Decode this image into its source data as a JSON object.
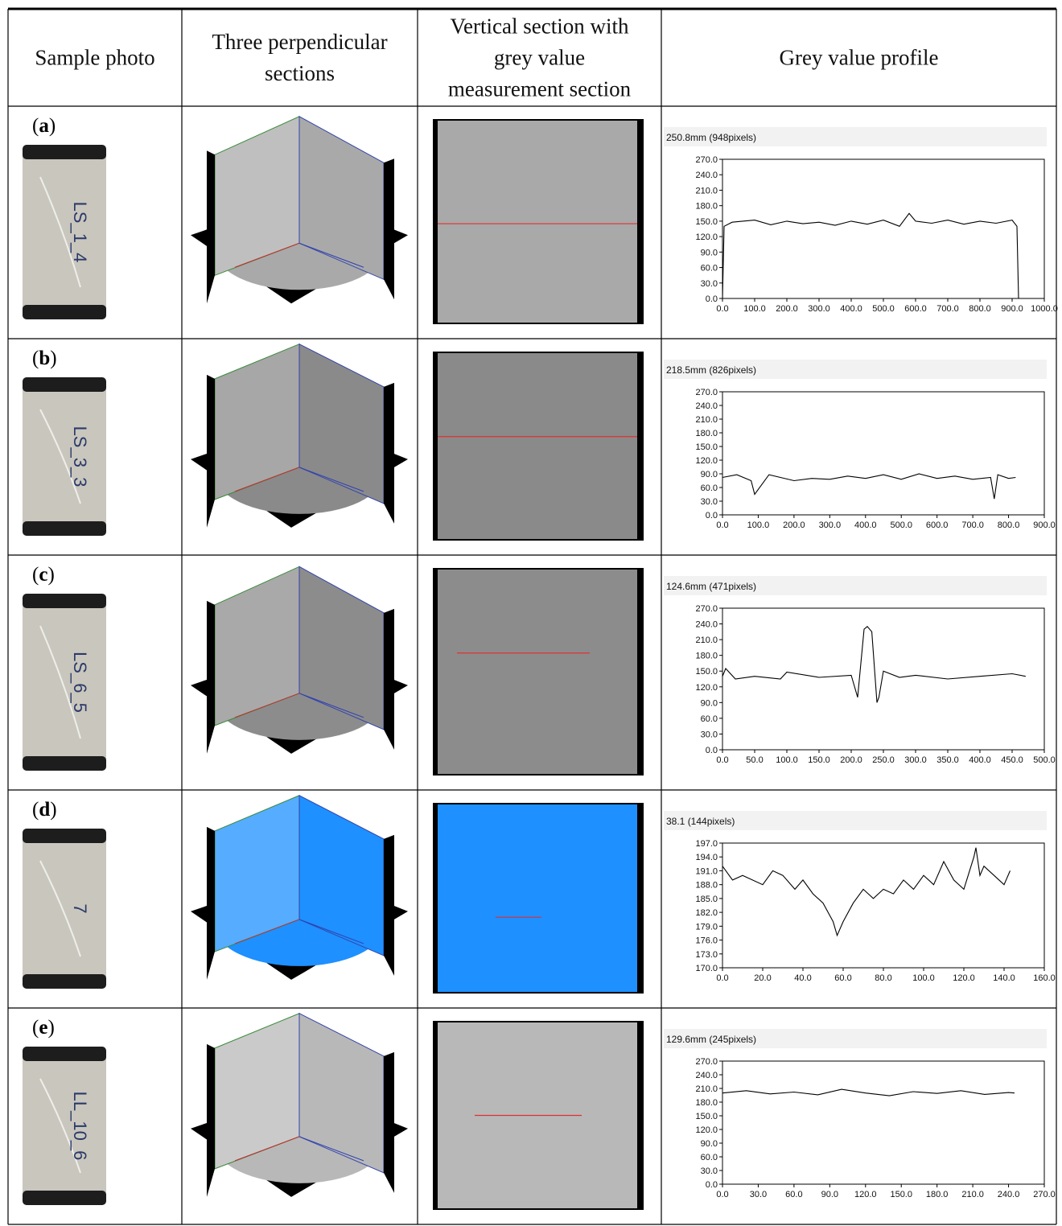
{
  "table": {
    "headers": [
      "Sample photo",
      [
        "Three perpendicular",
        "sections"
      ],
      [
        "Vertical section with",
        "grey value",
        "measurement section"
      ],
      "Grey value profile"
    ],
    "rows": [
      {
        "label": "a",
        "sample_text": "LS_1_4",
        "section_color": "#a9a9a9",
        "profile": {
          "header": "250.8mm (948pixels)",
          "chart_data": {
            "type": "line",
            "x_range": [
              0,
              1000
            ],
            "x_step": 100,
            "x_decimals": 1,
            "y_range": [
              0,
              270
            ],
            "y_step": 30,
            "y_decimals": 1,
            "series": [
              {
                "x": [
                  0,
                  5,
                  30,
                  100,
                  150,
                  200,
                  250,
                  300,
                  350,
                  400,
                  450,
                  500,
                  550,
                  580,
                  600,
                  650,
                  700,
                  750,
                  800,
                  850,
                  900,
                  915,
                  920,
                  925,
                  1000
                ],
                "y": [
                  0,
                  140,
                  148,
                  152,
                  143,
                  150,
                  145,
                  148,
                  142,
                  150,
                  144,
                  152,
                  140,
                  165,
                  150,
                  146,
                  152,
                  144,
                  150,
                  146,
                  152,
                  140,
                  0,
                  0,
                  0
                ]
              }
            ]
          }
        }
      },
      {
        "label": "b",
        "sample_text": "LS_3_3",
        "section_color": "#8a8a8a",
        "profile": {
          "header": "218.5mm (826pixels)",
          "chart_data": {
            "type": "line",
            "x_range": [
              0,
              900
            ],
            "x_step": 100,
            "x_decimals": 1,
            "y_range": [
              0,
              270
            ],
            "y_step": 30,
            "y_decimals": 1,
            "series": [
              {
                "x": [
                  0,
                  40,
                  80,
                  90,
                  130,
                  200,
                  250,
                  300,
                  350,
                  400,
                  450,
                  500,
                  550,
                  600,
                  650,
                  700,
                  750,
                  760,
                  770,
                  800,
                  820
                ],
                "y": [
                  82,
                  88,
                  75,
                  45,
                  88,
                  75,
                  80,
                  78,
                  85,
                  80,
                  88,
                  78,
                  90,
                  80,
                  85,
                  78,
                  82,
                  35,
                  88,
                  80,
                  82
                ]
              }
            ]
          }
        }
      },
      {
        "label": "c",
        "sample_text": "LS_6_5",
        "section_color": "#8c8c8c",
        "profile": {
          "header": "124.6mm (471pixels)",
          "chart_data": {
            "type": "line",
            "x_range": [
              0,
              500
            ],
            "x_step": 50,
            "x_decimals": 1,
            "y_range": [
              0,
              270
            ],
            "y_step": 30,
            "y_decimals": 1,
            "series": [
              {
                "x": [
                  0,
                  5,
                  20,
                  50,
                  90,
                  100,
                  150,
                  200,
                  210,
                  220,
                  225,
                  232,
                  240,
                  243,
                  250,
                  275,
                  300,
                  350,
                  400,
                  450,
                  471
                ],
                "y": [
                  140,
                  155,
                  135,
                  140,
                  135,
                  148,
                  138,
                  142,
                  100,
                  230,
                  235,
                  225,
                  90,
                  100,
                  150,
                  138,
                  142,
                  135,
                  140,
                  145,
                  140
                ]
              }
            ]
          }
        }
      },
      {
        "label": "d",
        "sample_text": "7",
        "section_color": "#1e90ff",
        "profile": {
          "header": "38.1     (144pixels)",
          "chart_data": {
            "type": "line",
            "x_range": [
              0,
              160
            ],
            "x_step": 20,
            "x_decimals": 1,
            "y_range": [
              170,
              197
            ],
            "y_step": 3,
            "y_decimals": 1,
            "series": [
              {
                "x": [
                  0,
                  5,
                  10,
                  20,
                  25,
                  30,
                  36,
                  40,
                  45,
                  50,
                  55,
                  57,
                  60,
                  65,
                  70,
                  75,
                  80,
                  85,
                  90,
                  95,
                  100,
                  105,
                  110,
                  115,
                  120,
                  125,
                  126,
                  128,
                  130,
                  135,
                  140,
                  143
                ],
                "y": [
                  192,
                  189,
                  190,
                  188,
                  191,
                  190,
                  187,
                  189,
                  186,
                  184,
                  180,
                  177,
                  180,
                  184,
                  187,
                  185,
                  187,
                  186,
                  189,
                  187,
                  190,
                  188,
                  193,
                  189,
                  187,
                  194,
                  196,
                  190,
                  192,
                  190,
                  188,
                  191
                ]
              }
            ]
          }
        }
      },
      {
        "label": "e",
        "sample_text": "LL_10_6",
        "section_color": "#b8b8b8",
        "profile": {
          "header": "129.6mm (245pixels)",
          "chart_data": {
            "type": "line",
            "x_range": [
              0,
              270
            ],
            "x_step": 30,
            "x_decimals": 1,
            "y_range": [
              0,
              270
            ],
            "y_step": 30,
            "y_decimals": 1,
            "series": [
              {
                "x": [
                  0,
                  20,
                  40,
                  60,
                  80,
                  100,
                  120,
                  140,
                  160,
                  180,
                  200,
                  220,
                  240,
                  245
                ],
                "y": [
                  200,
                  205,
                  198,
                  202,
                  196,
                  208,
                  200,
                  194,
                  203,
                  199,
                  205,
                  197,
                  201,
                  200
                ]
              }
            ]
          }
        }
      }
    ]
  }
}
